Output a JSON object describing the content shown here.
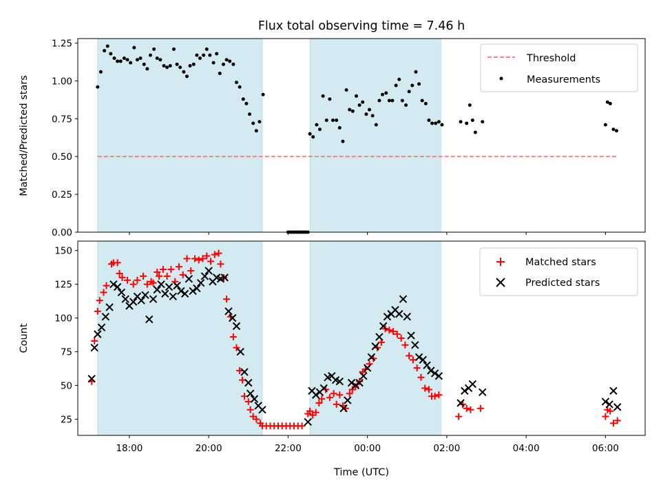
{
  "chart_data": [
    {
      "type": "scatter",
      "title": "Flux total observing time = 7.46 h",
      "xlabel": "",
      "ylabel": "Matched/Predicted stars",
      "x_unit": "hours since 00:00 UTC (day 1), values above 24 are next day",
      "xlim": [
        16.7,
        31.0
      ],
      "ylim": [
        0,
        1.28
      ],
      "yticks": [
        "0.00",
        "0.25",
        "0.50",
        "0.75",
        "1.00",
        "1.25"
      ],
      "shaded_intervals": [
        [
          17.2,
          21.35
        ],
        [
          22.55,
          25.85
        ]
      ],
      "shade_color": "#d3eaf1",
      "legend": {
        "position": "upper right",
        "entries": [
          "Threshold",
          "Measurements"
        ]
      },
      "threshold": {
        "name": "Threshold",
        "value": 0.5,
        "x_range": [
          17.2,
          30.28
        ],
        "color": "#ff7373"
      },
      "series": [
        {
          "name": "Measurements",
          "color": "#000000",
          "x": [
            17.2,
            17.28,
            17.37,
            17.45,
            17.53,
            17.62,
            17.7,
            17.78,
            17.87,
            17.95,
            18.03,
            18.12,
            18.2,
            18.28,
            18.37,
            18.45,
            18.53,
            18.62,
            18.7,
            18.78,
            18.87,
            18.95,
            19.03,
            19.12,
            19.2,
            19.28,
            19.37,
            19.45,
            19.53,
            19.62,
            19.7,
            19.78,
            19.87,
            19.95,
            20.03,
            20.12,
            20.2,
            20.28,
            20.37,
            20.45,
            20.53,
            20.62,
            20.7,
            20.78,
            20.87,
            20.95,
            21.03,
            21.12,
            21.2,
            21.28,
            21.37,
            22.55,
            22.63,
            22.72,
            22.8,
            22.88,
            22.97,
            23.05,
            23.13,
            23.22,
            23.3,
            23.38,
            23.47,
            23.55,
            23.63,
            23.72,
            23.8,
            23.88,
            23.97,
            24.05,
            24.13,
            24.22,
            24.3,
            24.38,
            24.47,
            24.55,
            24.63,
            24.72,
            24.8,
            24.88,
            24.97,
            25.05,
            25.13,
            25.22,
            25.3,
            25.38,
            25.47,
            25.55,
            25.63,
            25.72,
            25.8,
            25.88,
            26.35,
            26.5,
            26.58,
            26.65,
            26.72,
            26.9,
            30.0,
            30.05,
            30.12,
            30.2,
            30.28
          ],
          "y": [
            0.96,
            1.06,
            1.2,
            1.23,
            1.18,
            1.15,
            1.13,
            1.13,
            1.15,
            1.14,
            1.12,
            1.22,
            1.14,
            1.15,
            1.11,
            1.08,
            1.17,
            1.21,
            1.15,
            1.14,
            1.1,
            1.09,
            1.1,
            1.21,
            1.11,
            1.09,
            1.06,
            1.03,
            1.1,
            1.11,
            1.17,
            1.15,
            1.17,
            1.21,
            1.17,
            1.12,
            1.18,
            1.05,
            1.11,
            1.14,
            1.13,
            1.11,
            0.99,
            0.96,
            0.88,
            0.85,
            0.78,
            0.72,
            0.67,
            0.73,
            0.91,
            0.65,
            0.63,
            0.71,
            0.68,
            0.9,
            0.74,
            0.88,
            0.74,
            0.74,
            0.69,
            0.6,
            0.94,
            0.81,
            0.8,
            0.9,
            0.84,
            0.86,
            0.78,
            0.81,
            0.77,
            0.71,
            0.87,
            0.91,
            0.92,
            0.87,
            0.87,
            0.97,
            1.01,
            0.87,
            0.84,
            0.93,
            0.97,
            1.06,
            0.98,
            0.87,
            0.85,
            0.74,
            0.72,
            0.72,
            0.73,
            0.71,
            0.73,
            0.72,
            0.84,
            0.74,
            0.66,
            0.73,
            0.71,
            0.86,
            0.85,
            0.68,
            0.67
          ],
          "zero_x": [
            22.0,
            22.05,
            22.1,
            22.15,
            22.2,
            22.25,
            22.3,
            22.35,
            22.4,
            22.45,
            22.5
          ],
          "zero_y": 0
        }
      ]
    },
    {
      "type": "scatter",
      "title": "",
      "xlabel": "Time (UTC)",
      "ylabel": "Count",
      "x_unit": "hours since 00:00 UTC (day 1), values above 24 are next day",
      "xlim": [
        16.7,
        31.0
      ],
      "ylim": [
        13,
        157
      ],
      "yticks": [
        "25",
        "50",
        "75",
        "100",
        "125",
        "150"
      ],
      "xticks": [
        "18:00",
        "20:00",
        "22:00",
        "00:00",
        "02:00",
        "04:00",
        "06:00"
      ],
      "xtick_values": [
        18,
        20,
        22,
        24,
        26,
        28,
        30
      ],
      "shaded_intervals": [
        [
          17.2,
          21.35
        ],
        [
          22.55,
          25.85
        ]
      ],
      "shade_color": "#d3eaf1",
      "legend": {
        "position": "upper right",
        "entries": [
          "Matched stars",
          "Predicted stars"
        ]
      },
      "series": [
        {
          "name": "Matched stars",
          "marker": "+",
          "color": "#ff0000",
          "x": [
            17.05,
            17.12,
            17.2,
            17.25,
            17.35,
            17.42,
            17.55,
            17.6,
            17.7,
            17.75,
            17.82,
            17.95,
            18.1,
            18.2,
            18.35,
            18.45,
            18.55,
            18.6,
            18.7,
            18.75,
            18.85,
            18.95,
            19.05,
            19.15,
            19.25,
            19.35,
            19.45,
            19.55,
            19.65,
            19.75,
            19.85,
            19.95,
            20.05,
            20.15,
            20.25,
            20.3,
            20.38,
            20.45,
            20.55,
            20.62,
            20.7,
            20.78,
            20.85,
            20.9,
            21.0,
            21.05,
            21.12,
            21.2,
            21.3,
            21.35,
            21.45,
            21.55,
            21.65,
            21.75,
            21.85,
            21.95,
            22.05,
            22.15,
            22.25,
            22.35,
            22.5,
            22.55,
            22.62,
            22.7,
            22.78,
            22.85,
            22.95,
            23.05,
            23.15,
            23.22,
            23.3,
            23.38,
            23.45,
            23.55,
            23.62,
            23.7,
            23.8,
            23.88,
            23.95,
            24.05,
            24.15,
            24.25,
            24.35,
            24.45,
            24.55,
            24.65,
            24.75,
            24.85,
            24.95,
            25.05,
            25.15,
            25.25,
            25.35,
            25.45,
            25.55,
            25.62,
            25.7,
            25.8,
            26.3,
            26.4,
            26.5,
            26.6,
            26.85,
            30.0,
            30.05,
            30.12,
            30.2,
            30.3
          ],
          "y": [
            53,
            83,
            105,
            113,
            119,
            124,
            140,
            141,
            141,
            133,
            130,
            128,
            125,
            128,
            131,
            125,
            127,
            126,
            134,
            131,
            136,
            131,
            136,
            127,
            138,
            132,
            144,
            135,
            144,
            143,
            144,
            146,
            142,
            147,
            148,
            140,
            130,
            114,
            101,
            86,
            78,
            61,
            54,
            42,
            38,
            32,
            27,
            25,
            22,
            20,
            20,
            20,
            20,
            20,
            20,
            20,
            20,
            20,
            20,
            20,
            29,
            31,
            28,
            30,
            37,
            40,
            47,
            41,
            44,
            36,
            43,
            35,
            33,
            44,
            47,
            49,
            53,
            60,
            62,
            66,
            70,
            78,
            82,
            92,
            91,
            90,
            88,
            85,
            80,
            72,
            69,
            63,
            56,
            48,
            47,
            42,
            42,
            43,
            27,
            36,
            33,
            32,
            33,
            27,
            32,
            31,
            22,
            24
          ]
        },
        {
          "name": "Predicted stars",
          "marker": "x",
          "color": "#000000",
          "x": [
            17.05,
            17.12,
            17.2,
            17.3,
            17.4,
            17.5,
            17.6,
            17.7,
            17.8,
            17.9,
            18.0,
            18.1,
            18.2,
            18.3,
            18.4,
            18.5,
            18.6,
            18.7,
            18.8,
            18.9,
            19.0,
            19.1,
            19.2,
            19.3,
            19.4,
            19.5,
            19.6,
            19.7,
            19.8,
            19.9,
            20.0,
            20.1,
            20.2,
            20.3,
            20.4,
            20.5,
            20.6,
            20.7,
            20.8,
            20.9,
            21.0,
            21.05,
            21.15,
            21.25,
            21.35,
            22.5,
            22.6,
            22.7,
            22.8,
            22.9,
            23.0,
            23.1,
            23.2,
            23.3,
            23.4,
            23.5,
            23.6,
            23.7,
            23.8,
            23.9,
            24.0,
            24.1,
            24.2,
            24.3,
            24.4,
            24.5,
            24.6,
            24.7,
            24.8,
            24.9,
            25.0,
            25.1,
            25.2,
            25.3,
            25.4,
            25.5,
            25.6,
            25.7,
            25.8,
            26.35,
            26.45,
            26.55,
            26.65,
            26.9,
            30.0,
            30.1,
            30.2,
            30.3
          ],
          "y": [
            55,
            78,
            88,
            93,
            101,
            108,
            125,
            123,
            119,
            114,
            109,
            112,
            116,
            113,
            117,
            99,
            114,
            121,
            125,
            118,
            123,
            116,
            124,
            120,
            118,
            129,
            120,
            122,
            126,
            131,
            135,
            127,
            130,
            129,
            130,
            105,
            100,
            94,
            75,
            60,
            52,
            44,
            40,
            35,
            32,
            23,
            46,
            43,
            45,
            48,
            56,
            57,
            54,
            53,
            33,
            39,
            52,
            50,
            52,
            57,
            63,
            71,
            79,
            86,
            94,
            101,
            103,
            106,
            103,
            114,
            101,
            87,
            80,
            71,
            69,
            65,
            61,
            59,
            57,
            37,
            46,
            48,
            51,
            45,
            38,
            36,
            46,
            34
          ]
        }
      ]
    }
  ]
}
